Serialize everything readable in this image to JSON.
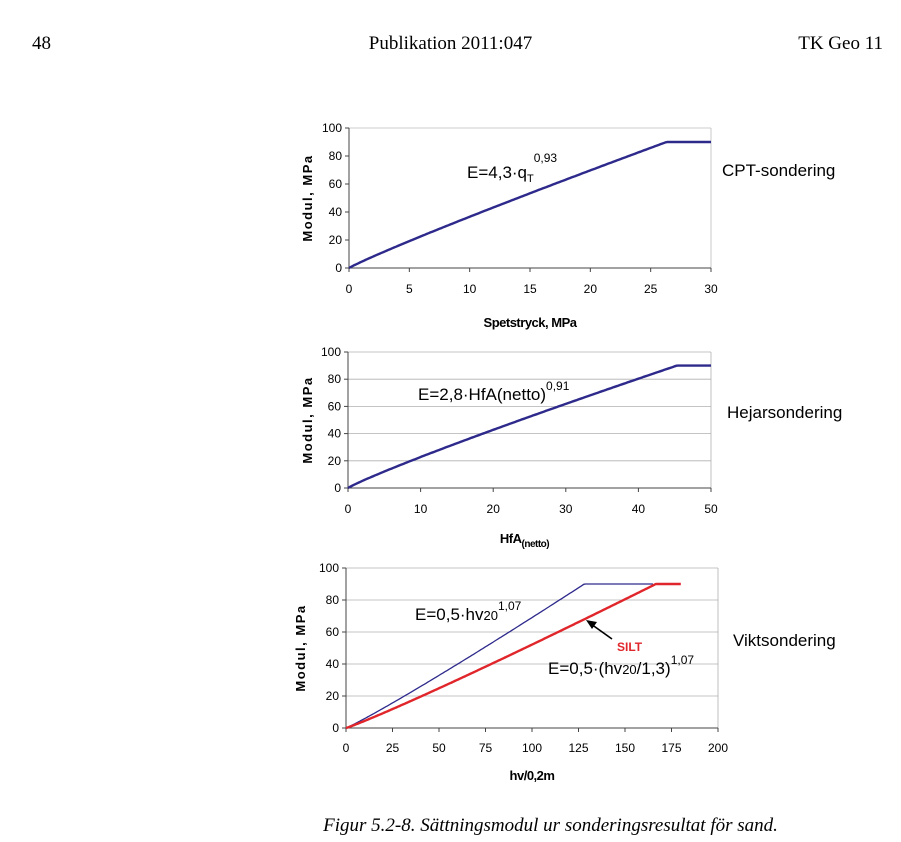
{
  "header": {
    "page_number": "48",
    "publication": "Publikation 2011:047",
    "series": "TK Geo 11"
  },
  "caption": "Figur 5.2-8. Sättningsmodul ur sonderingsresultat för sand.",
  "colors": {
    "blue": "#2e2a8c",
    "red": "#e0262b",
    "axis": "#555555"
  },
  "chart_data": [
    {
      "type": "line",
      "title": "CPT-sondering",
      "xlabel": "Spetstryck, MPa",
      "ylabel": "Modul, MPa",
      "xlim": [
        0,
        30
      ],
      "ylim": [
        0,
        100
      ],
      "xticks": [
        0,
        5,
        10,
        15,
        20,
        25,
        30
      ],
      "yticks": [
        0,
        20,
        40,
        60,
        80,
        100
      ],
      "grid": false,
      "equation": {
        "main": "E=4,3·q",
        "sub": "T",
        "exp": "0,93"
      },
      "series": [
        {
          "color": "#2e2a8c",
          "formula": {
            "a": 4.3,
            "b": 0.93,
            "div": 1,
            "cap": 90
          },
          "x_max": 30
        }
      ]
    },
    {
      "type": "line",
      "title": "Hejarsondering",
      "xlabel": "HfA",
      "xlabel_sub": "(netto)",
      "ylabel": "Modul, MPa",
      "xlim": [
        0,
        50
      ],
      "ylim": [
        0,
        100
      ],
      "xticks": [
        0,
        10,
        20,
        30,
        40,
        50
      ],
      "yticks": [
        0,
        20,
        40,
        60,
        80,
        100
      ],
      "grid": true,
      "equation": {
        "main": "E=2,8·HfA(netto)",
        "exp": "0,91"
      },
      "series": [
        {
          "color": "#2e2a8c",
          "formula": {
            "a": 2.8,
            "b": 0.91,
            "div": 1,
            "cap": 90
          },
          "x_max": 50
        }
      ]
    },
    {
      "type": "line",
      "title": "Viktsondering",
      "xlabel": "hv/0,2m",
      "ylabel": "Modul, MPa",
      "xlim": [
        0,
        200
      ],
      "ylim": [
        0,
        100
      ],
      "xticks": [
        0,
        25,
        50,
        75,
        100,
        125,
        150,
        175,
        200
      ],
      "yticks": [
        0,
        20,
        40,
        60,
        80,
        100
      ],
      "grid": true,
      "equations": [
        {
          "main": "E=0,5·hv",
          "sub": "20",
          "exp": "1,07"
        },
        {
          "main": "E=0,5·(hv",
          "sub": "20",
          "tail": "/1,3)",
          "exp": "1,07"
        }
      ],
      "annotation": "SILT",
      "series": [
        {
          "color": "#2e2a8c",
          "formula": {
            "a": 0.5,
            "b": 1.07,
            "div": 1,
            "cap": 90
          },
          "x_max": 165
        },
        {
          "color": "#e0262b",
          "formula": {
            "a": 0.5,
            "b": 1.07,
            "div": 1.3,
            "cap": 90
          },
          "x_max": 180
        }
      ]
    }
  ]
}
